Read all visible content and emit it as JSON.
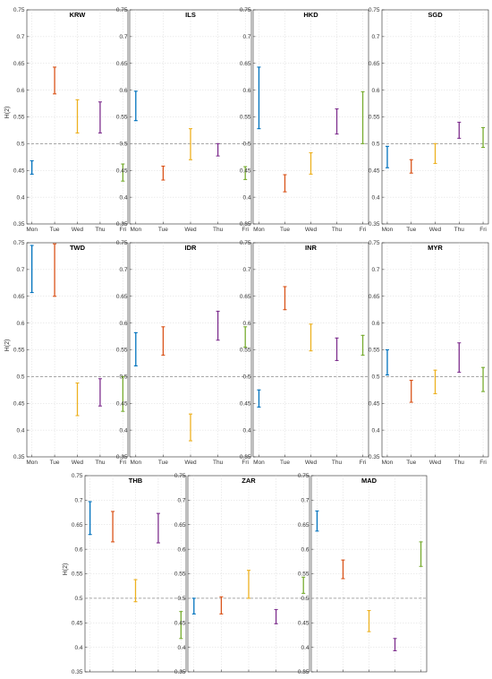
{
  "chart_data": {
    "type": "errorbar-grid",
    "categories": [
      "Mon",
      "Tue",
      "Wed",
      "Thu",
      "Fri"
    ],
    "ylim": [
      0.35,
      0.75
    ],
    "yticks": [
      0.35,
      0.4,
      0.45,
      0.5,
      0.55,
      0.6,
      0.65,
      0.7,
      0.75
    ],
    "ytick_labels": [
      "0.35",
      "0.4",
      "0.45",
      "0.5",
      "0.55",
      "0.6",
      "0.65",
      "0.7",
      "0.75"
    ],
    "ylabel": "H(2)",
    "reference_line": 0.5,
    "grid": true,
    "colors": [
      "#0072BD",
      "#D95319",
      "#EDB120",
      "#7E2F8E",
      "#77AC30"
    ],
    "panels": [
      {
        "title": "KRW",
        "intervals": [
          [
            0.443,
            0.468
          ],
          [
            0.593,
            0.643
          ],
          [
            0.52,
            0.582
          ],
          [
            0.52,
            0.578
          ],
          [
            0.43,
            0.462
          ]
        ]
      },
      {
        "title": "ILS",
        "intervals": [
          [
            0.543,
            0.598
          ],
          [
            0.432,
            0.458
          ],
          [
            0.47,
            0.528
          ],
          [
            0.477,
            0.5
          ],
          [
            0.433,
            0.457
          ]
        ]
      },
      {
        "title": "HKD",
        "intervals": [
          [
            0.528,
            0.643
          ],
          [
            0.41,
            0.442
          ],
          [
            0.443,
            0.483
          ],
          [
            0.518,
            0.565
          ],
          [
            0.5,
            0.597
          ]
        ]
      },
      {
        "title": "SGD",
        "intervals": [
          [
            0.455,
            0.495
          ],
          [
            0.445,
            0.47
          ],
          [
            0.463,
            0.5
          ],
          [
            0.51,
            0.54
          ],
          [
            0.493,
            0.53
          ]
        ]
      },
      {
        "title": "TWD",
        "intervals": [
          [
            0.657,
            0.745
          ],
          [
            0.65,
            0.748
          ],
          [
            0.427,
            0.488
          ],
          [
            0.445,
            0.496
          ],
          [
            0.435,
            0.5
          ]
        ]
      },
      {
        "title": "IDR",
        "intervals": [
          [
            0.52,
            0.582
          ],
          [
            0.54,
            0.593
          ],
          [
            0.38,
            0.43
          ],
          [
            0.568,
            0.622
          ],
          [
            0.555,
            0.593
          ]
        ]
      },
      {
        "title": "INR",
        "intervals": [
          [
            0.443,
            0.475
          ],
          [
            0.625,
            0.668
          ],
          [
            0.548,
            0.598
          ],
          [
            0.53,
            0.572
          ],
          [
            0.54,
            0.577
          ]
        ]
      },
      {
        "title": "MYR",
        "intervals": [
          [
            0.503,
            0.55
          ],
          [
            0.452,
            0.493
          ],
          [
            0.468,
            0.512
          ],
          [
            0.508,
            0.563
          ],
          [
            0.472,
            0.517
          ]
        ]
      },
      {
        "title": "THB",
        "intervals": [
          [
            0.63,
            0.697
          ],
          [
            0.615,
            0.677
          ],
          [
            0.493,
            0.538
          ],
          [
            0.613,
            0.673
          ],
          [
            0.418,
            0.473
          ]
        ]
      },
      {
        "title": "ZAR",
        "intervals": [
          [
            0.468,
            0.5
          ],
          [
            0.468,
            0.503
          ],
          [
            0.5,
            0.557
          ],
          [
            0.448,
            0.477
          ],
          [
            0.51,
            0.543
          ]
        ]
      },
      {
        "title": "MAD",
        "intervals": [
          [
            0.637,
            0.678
          ],
          [
            0.54,
            0.578
          ],
          [
            0.432,
            0.475
          ],
          [
            0.393,
            0.418
          ],
          [
            0.565,
            0.615
          ]
        ]
      }
    ]
  }
}
